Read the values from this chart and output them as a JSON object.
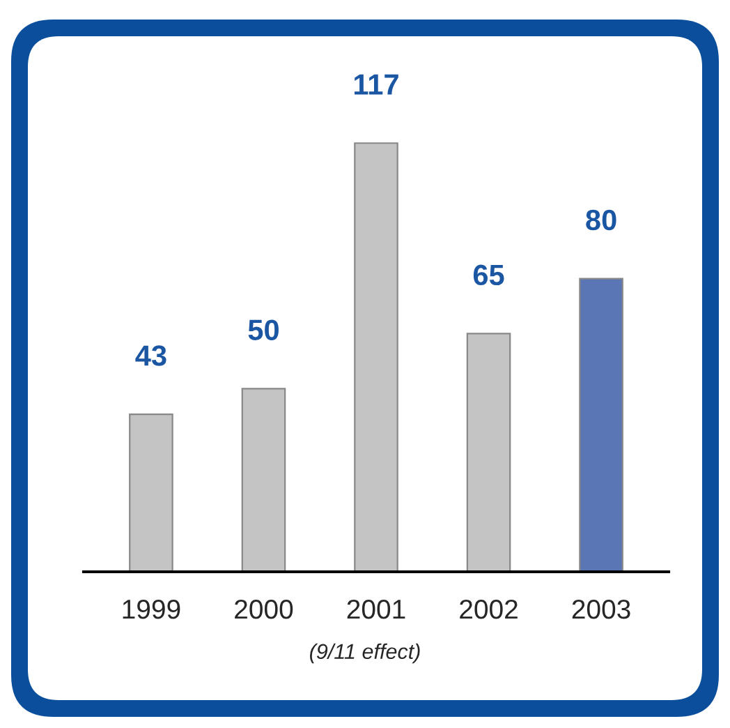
{
  "chart_data": {
    "type": "bar",
    "categories": [
      "1999",
      "2000",
      "2001",
      "2002",
      "2003"
    ],
    "values": [
      43,
      50,
      117,
      65,
      80
    ],
    "colors": [
      "#c4c4c4",
      "#c4c4c4",
      "#c4c4c4",
      "#c4c4c4",
      "#5b76b5"
    ],
    "data_labels": true,
    "annotations": [
      "(9/11 effect)"
    ]
  }
}
